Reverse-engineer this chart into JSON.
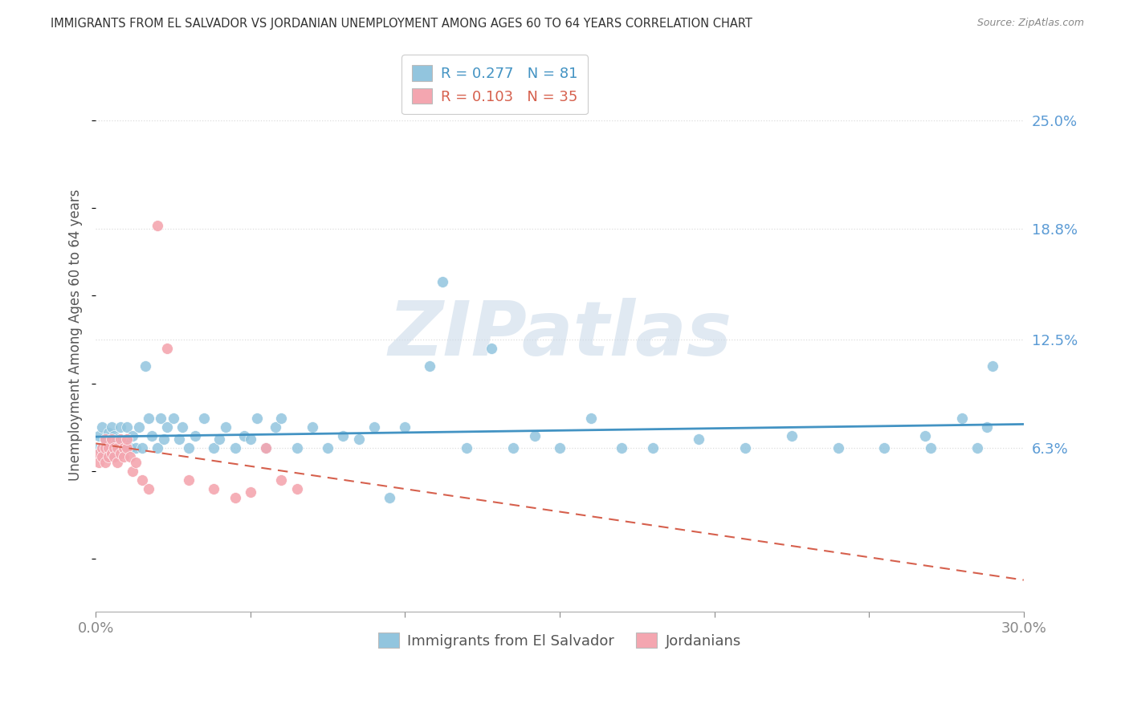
{
  "title": "IMMIGRANTS FROM EL SALVADOR VS JORDANIAN UNEMPLOYMENT AMONG AGES 60 TO 64 YEARS CORRELATION CHART",
  "source": "Source: ZipAtlas.com",
  "ylabel": "Unemployment Among Ages 60 to 64 years",
  "xlim": [
    0.0,
    0.3
  ],
  "ylim": [
    -0.03,
    0.285
  ],
  "ytick_positions": [
    0.063,
    0.125,
    0.188,
    0.25
  ],
  "ytick_labels": [
    "6.3%",
    "12.5%",
    "18.8%",
    "25.0%"
  ],
  "legend_r1": "R = 0.277",
  "legend_n1": "N = 81",
  "legend_r2": "R = 0.103",
  "legend_n2": "N = 35",
  "blue_color": "#92c5de",
  "pink_color": "#f4a6b0",
  "blue_line_color": "#4393c3",
  "pink_line_color": "#d6604d",
  "grid_color": "#dddddd",
  "background_color": "#ffffff",
  "watermark": "ZIPatlas",
  "blue_x": [
    0.001,
    0.001,
    0.002,
    0.002,
    0.002,
    0.003,
    0.003,
    0.003,
    0.004,
    0.004,
    0.004,
    0.005,
    0.005,
    0.005,
    0.006,
    0.006,
    0.006,
    0.007,
    0.007,
    0.008,
    0.008,
    0.009,
    0.01,
    0.01,
    0.011,
    0.012,
    0.013,
    0.014,
    0.015,
    0.016,
    0.017,
    0.018,
    0.02,
    0.021,
    0.022,
    0.023,
    0.025,
    0.027,
    0.028,
    0.03,
    0.032,
    0.035,
    0.038,
    0.04,
    0.042,
    0.045,
    0.048,
    0.05,
    0.052,
    0.055,
    0.058,
    0.06,
    0.065,
    0.07,
    0.075,
    0.08,
    0.085,
    0.09,
    0.095,
    0.1,
    0.108,
    0.112,
    0.12,
    0.128,
    0.135,
    0.142,
    0.15,
    0.16,
    0.17,
    0.18,
    0.195,
    0.21,
    0.225,
    0.24,
    0.255,
    0.268,
    0.27,
    0.28,
    0.285,
    0.288,
    0.29
  ],
  "blue_y": [
    0.063,
    0.07,
    0.058,
    0.063,
    0.075,
    0.06,
    0.063,
    0.068,
    0.058,
    0.063,
    0.072,
    0.063,
    0.068,
    0.075,
    0.06,
    0.063,
    0.07,
    0.063,
    0.068,
    0.063,
    0.075,
    0.063,
    0.068,
    0.075,
    0.063,
    0.07,
    0.063,
    0.075,
    0.063,
    0.11,
    0.08,
    0.07,
    0.063,
    0.08,
    0.068,
    0.075,
    0.08,
    0.068,
    0.075,
    0.063,
    0.07,
    0.08,
    0.063,
    0.068,
    0.075,
    0.063,
    0.07,
    0.068,
    0.08,
    0.063,
    0.075,
    0.08,
    0.063,
    0.075,
    0.063,
    0.07,
    0.068,
    0.075,
    0.035,
    0.075,
    0.11,
    0.158,
    0.063,
    0.12,
    0.063,
    0.07,
    0.063,
    0.08,
    0.063,
    0.063,
    0.068,
    0.063,
    0.07,
    0.063,
    0.063,
    0.07,
    0.063,
    0.08,
    0.063,
    0.075,
    0.11
  ],
  "pink_x": [
    0.001,
    0.001,
    0.002,
    0.002,
    0.003,
    0.003,
    0.003,
    0.004,
    0.004,
    0.005,
    0.005,
    0.006,
    0.006,
    0.007,
    0.007,
    0.008,
    0.008,
    0.009,
    0.009,
    0.01,
    0.01,
    0.011,
    0.012,
    0.013,
    0.015,
    0.017,
    0.02,
    0.023,
    0.03,
    0.038,
    0.045,
    0.05,
    0.055,
    0.06,
    0.065
  ],
  "pink_y": [
    0.06,
    0.055,
    0.063,
    0.058,
    0.063,
    0.068,
    0.055,
    0.063,
    0.058,
    0.06,
    0.068,
    0.063,
    0.058,
    0.063,
    0.055,
    0.06,
    0.068,
    0.063,
    0.058,
    0.063,
    0.068,
    0.058,
    0.05,
    0.055,
    0.045,
    0.04,
    0.19,
    0.12,
    0.045,
    0.04,
    0.035,
    0.038,
    0.063,
    0.045,
    0.04
  ]
}
